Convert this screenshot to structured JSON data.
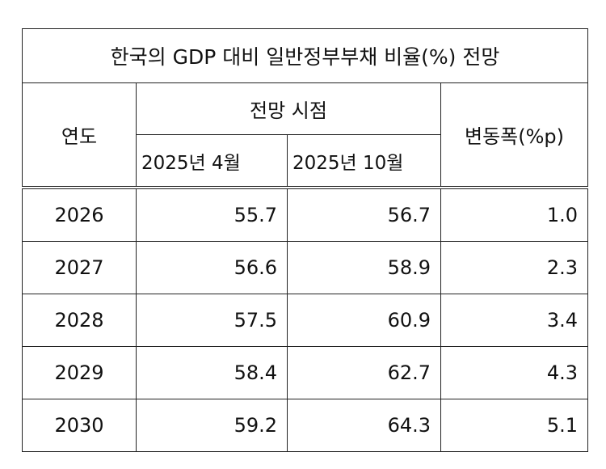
{
  "title": "한국의 GDP 대비 일반정부부채 비율(%) 전망",
  "header": {
    "year": "연도",
    "forecast": "전망 시점",
    "columns": [
      "2025년 4월",
      "2025년 10월"
    ],
    "change": "변동폭(%p)"
  },
  "rows": [
    [
      "2026",
      "55.7",
      "56.7",
      "1.0"
    ],
    [
      "2027",
      "56.6",
      "58.9",
      "2.3"
    ],
    [
      "2028",
      "57.5",
      "60.9",
      "3.4"
    ],
    [
      "2029",
      "58.4",
      "62.7",
      "4.3"
    ],
    [
      "2030",
      "59.2",
      "64.3",
      "5.1"
    ]
  ]
}
